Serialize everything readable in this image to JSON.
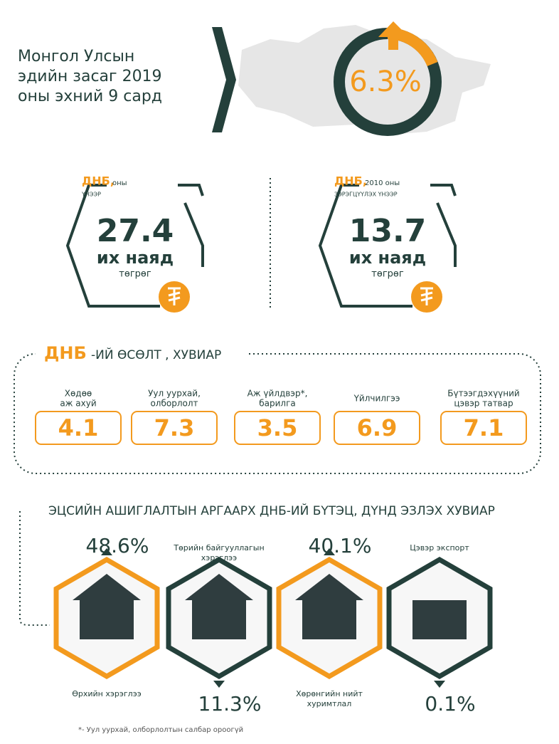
{
  "title": {
    "lines": [
      "Монгол Улсын",
      "эдийн засаг 2019",
      "оны эхний 9 сард"
    ]
  },
  "growth": "6.3%",
  "gdp_cards": [
    {
      "label": "ДНБ,",
      "note": "оны",
      "note2": "ҮНЭЭР",
      "value": "27.4",
      "unit": "их наяд",
      "currency": "төгрөг"
    },
    {
      "label": "ДНБ,",
      "note": "2010 оны",
      "note2": "ЗЭРЭГЦҮҮЛЭХ ҮНЭЭР",
      "value": "13.7",
      "unit": "их наяд",
      "currency": "төгрөг"
    }
  ],
  "growth_section": {
    "title_highlight": "ДНБ",
    "title_rest": "-ИЙ ӨСӨЛТ , ХУВИАР",
    "sectors": [
      {
        "lines": [
          "Хөдөө",
          "аж ахуй"
        ],
        "value": "4.1"
      },
      {
        "lines": [
          "Уул уурхай,",
          "олборлолт"
        ],
        "value": "7.3"
      },
      {
        "lines": [
          "Аж үйлдвэр*,",
          "барилга"
        ],
        "value": "3.5"
      },
      {
        "lines": [
          "Үйлчилгээ"
        ],
        "value": "6.9"
      },
      {
        "lines": [
          "Бүтээгдэхүүний",
          "цэвэр татвар"
        ],
        "value": "7.1"
      }
    ]
  },
  "structure_section": {
    "title": "ЭЦСИЙН АШИГЛАЛТЫН АРГААРХ ДНБ-ИЙ БҮТЭЦ, ДҮНД ЭЗЛЭХ ХУВИАР",
    "items": [
      {
        "lines": [
          "Өрхийн хэрэглээ"
        ],
        "value": "48.6%"
      },
      {
        "lines": [
          "Төрийн байгууллагын",
          "хэрэглээ"
        ],
        "value": "11.3%"
      },
      {
        "lines": [
          "Хөрөнгийн нийт",
          "хуримтлал"
        ],
        "value": "40.1%"
      },
      {
        "lines": [
          "Цэвэр экспорт"
        ],
        "value": "0.1%"
      }
    ]
  },
  "footnote": "*- Уул уурхай, олборлолтын салбар ороогүй"
}
